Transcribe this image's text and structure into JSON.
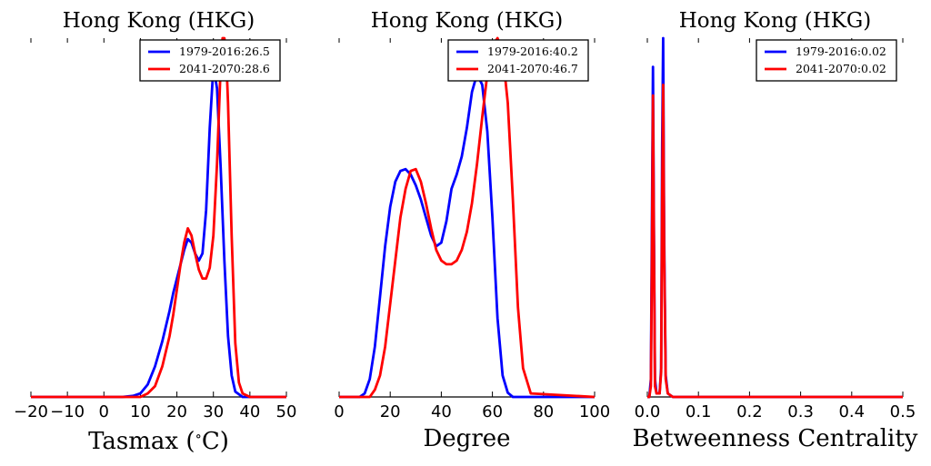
{
  "colors": {
    "baseline": "#0000ff",
    "future": "#ff0000",
    "axis": "#000000"
  },
  "chart_data": [
    {
      "type": "line",
      "title": "Hong Kong (HKG)",
      "xlabel": "Tasmax ($^\\circ$C)",
      "xlabel_prefix": "Tasmax (",
      "xlabel_sup": "∘",
      "xlabel_suffix": "C)",
      "xlim": [
        -20,
        50
      ],
      "ylim": [
        0,
        1
      ],
      "xticks": [
        -20,
        -10,
        0,
        10,
        20,
        30,
        40,
        50
      ],
      "xtick_labels": [
        "−20",
        "−10",
        "0",
        "10",
        "20",
        "30",
        "40",
        "50"
      ],
      "legend_position": "top-right",
      "series": [
        {
          "name": "1979-2016:26.5",
          "color": "#0000ff",
          "x": [
            -20,
            5,
            8,
            10,
            12,
            14,
            16,
            18,
            19,
            20,
            21,
            22,
            23,
            24,
            25,
            26,
            27,
            28,
            29,
            30,
            31,
            32,
            33,
            34,
            35,
            36,
            38,
            50
          ],
          "y": [
            0,
            0,
            0.003,
            0.01,
            0.035,
            0.085,
            0.155,
            0.24,
            0.29,
            0.33,
            0.37,
            0.41,
            0.44,
            0.43,
            0.4,
            0.38,
            0.4,
            0.52,
            0.75,
            0.92,
            0.86,
            0.64,
            0.38,
            0.17,
            0.06,
            0.015,
            0,
            0
          ]
        },
        {
          "name": "2041-2070:28.6",
          "color": "#ff0000",
          "x": [
            -20,
            10,
            12,
            14,
            16,
            18,
            19,
            20,
            21,
            22,
            23,
            24,
            25,
            26,
            27,
            28,
            29,
            30,
            31,
            32,
            32.5,
            33,
            33.5,
            34,
            35,
            36,
            37,
            38,
            40,
            50
          ],
          "y": [
            0,
            0,
            0.01,
            0.03,
            0.085,
            0.17,
            0.23,
            0.3,
            0.37,
            0.43,
            0.47,
            0.45,
            0.4,
            0.355,
            0.33,
            0.33,
            0.36,
            0.45,
            0.65,
            0.92,
            1.0,
            1.0,
            0.95,
            0.82,
            0.45,
            0.15,
            0.04,
            0.01,
            0,
            0
          ]
        }
      ]
    },
    {
      "type": "line",
      "title": "Hong Kong (HKG)",
      "xlabel": "Degree",
      "xlim": [
        0,
        100
      ],
      "ylim": [
        0,
        1
      ],
      "xticks": [
        0,
        20,
        40,
        60,
        80,
        100
      ],
      "xtick_labels": [
        "0",
        "20",
        "40",
        "60",
        "80",
        "100"
      ],
      "legend_position": "top-right",
      "series": [
        {
          "name": "1979-2016:40.2",
          "color": "#0000ff",
          "x": [
            0,
            8,
            10,
            12,
            14,
            16,
            18,
            20,
            22,
            24,
            26,
            28,
            30,
            32,
            34,
            36,
            38,
            40,
            42,
            44,
            46,
            48,
            50,
            52,
            54,
            56,
            58,
            60,
            62,
            64,
            66,
            68,
            100
          ],
          "y": [
            0,
            0,
            0.01,
            0.05,
            0.14,
            0.28,
            0.42,
            0.53,
            0.6,
            0.63,
            0.635,
            0.62,
            0.59,
            0.55,
            0.5,
            0.45,
            0.42,
            0.43,
            0.49,
            0.58,
            0.62,
            0.67,
            0.75,
            0.85,
            0.9,
            0.87,
            0.74,
            0.5,
            0.22,
            0.06,
            0.012,
            0,
            0
          ]
        },
        {
          "name": "2041-2070:46.7",
          "color": "#ff0000",
          "x": [
            0,
            12,
            14,
            16,
            18,
            20,
            22,
            24,
            26,
            28,
            30,
            32,
            34,
            36,
            38,
            40,
            42,
            44,
            46,
            48,
            50,
            52,
            54,
            56,
            58,
            60,
            62,
            64,
            66,
            68,
            70,
            72,
            75,
            100
          ],
          "y": [
            0,
            0,
            0.02,
            0.06,
            0.14,
            0.26,
            0.38,
            0.5,
            0.58,
            0.63,
            0.635,
            0.6,
            0.54,
            0.47,
            0.41,
            0.38,
            0.37,
            0.37,
            0.38,
            0.41,
            0.46,
            0.54,
            0.65,
            0.78,
            0.9,
            0.98,
            1.0,
            0.96,
            0.82,
            0.55,
            0.25,
            0.08,
            0.01,
            0
          ]
        }
      ]
    },
    {
      "type": "line",
      "title": "Hong Kong (HKG)",
      "xlabel": "Betweenness Centrality",
      "xlim": [
        0,
        0.5
      ],
      "ylim": [
        0,
        1
      ],
      "xticks": [
        0,
        0.1,
        0.2,
        0.3,
        0.4,
        0.5
      ],
      "xtick_labels": [
        "0.0",
        "0.1",
        "0.2",
        "0.3",
        "0.4",
        "0.5"
      ],
      "legend_position": "top-right",
      "series": [
        {
          "name": "1979-2016:0.02",
          "color": "#0000ff",
          "x": [
            0,
            0.004,
            0.007,
            0.009,
            0.011,
            0.013,
            0.015,
            0.018,
            0.024,
            0.027,
            0.029,
            0.031,
            0.033,
            0.036,
            0.04,
            0.05,
            0.5
          ],
          "y": [
            0,
            0,
            0.05,
            0.5,
            0.92,
            0.45,
            0.05,
            0.01,
            0.01,
            0.08,
            0.7,
            1.0,
            0.45,
            0.06,
            0.01,
            0,
            0
          ]
        },
        {
          "name": "2041-2070:0.02",
          "color": "#ff0000",
          "x": [
            0,
            0.004,
            0.007,
            0.009,
            0.011,
            0.013,
            0.015,
            0.018,
            0.024,
            0.027,
            0.029,
            0.031,
            0.033,
            0.036,
            0.04,
            0.05,
            0.5
          ],
          "y": [
            0,
            0,
            0.03,
            0.4,
            0.84,
            0.4,
            0.03,
            0.01,
            0.01,
            0.07,
            0.55,
            0.87,
            0.4,
            0.05,
            0.01,
            0,
            0
          ]
        }
      ]
    }
  ]
}
